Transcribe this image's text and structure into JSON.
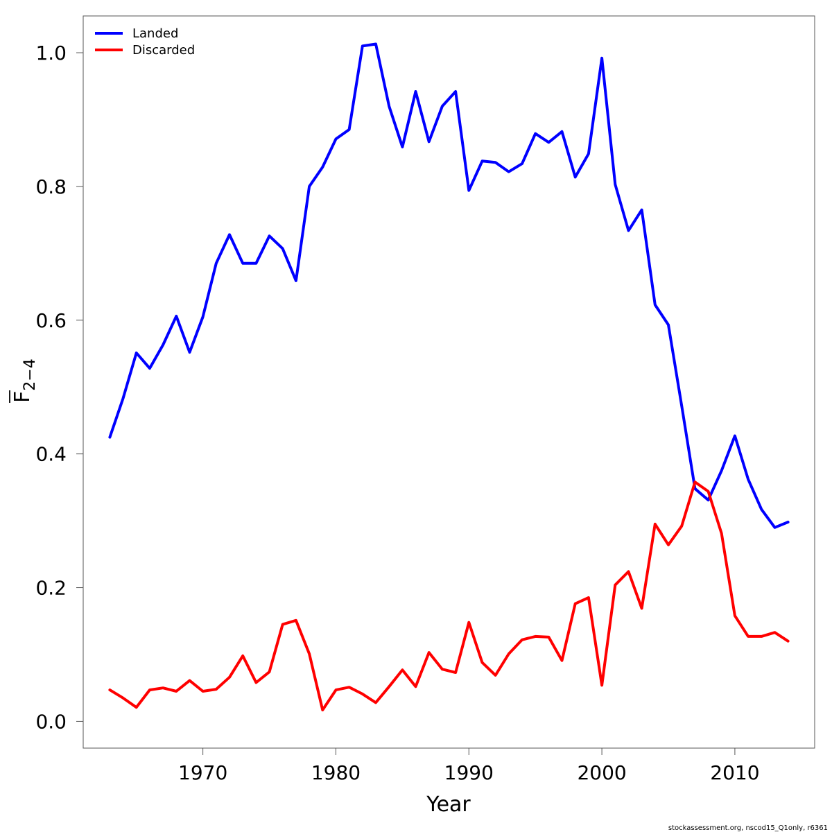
{
  "chart_data": {
    "type": "line",
    "xlabel": "Year",
    "ylabel": {
      "base": "F",
      "sub": "2−4"
    },
    "xlim": [
      1961,
      2016
    ],
    "ylim": [
      -0.04,
      1.055
    ],
    "xticks": [
      1970,
      1980,
      1990,
      2000,
      2010
    ],
    "yticks": [
      0.0,
      0.2,
      0.4,
      0.6,
      0.8,
      1.0
    ],
    "ytick_labels": [
      "0.0",
      "0.2",
      "0.4",
      "0.6",
      "0.8",
      "1.0"
    ],
    "grid": false,
    "legend_position": "top-left",
    "x": [
      1963,
      1964,
      1965,
      1966,
      1967,
      1968,
      1969,
      1970,
      1971,
      1972,
      1973,
      1974,
      1975,
      1976,
      1977,
      1978,
      1979,
      1980,
      1981,
      1982,
      1983,
      1984,
      1985,
      1986,
      1987,
      1988,
      1989,
      1990,
      1991,
      1992,
      1993,
      1994,
      1995,
      1996,
      1997,
      1998,
      1999,
      2000,
      2001,
      2002,
      2003,
      2004,
      2005,
      2006,
      2007,
      2008,
      2009,
      2010,
      2011,
      2012,
      2013,
      2014
    ],
    "series": [
      {
        "name": "Landed",
        "color": "#0000ff",
        "values": [
          0.425,
          0.483,
          0.551,
          0.528,
          0.563,
          0.606,
          0.552,
          0.605,
          0.685,
          0.728,
          0.685,
          0.685,
          0.726,
          0.707,
          0.659,
          0.8,
          0.829,
          0.871,
          0.885,
          1.01,
          1.013,
          0.92,
          0.859,
          0.942,
          0.867,
          0.92,
          0.942,
          0.794,
          0.838,
          0.836,
          0.822,
          0.834,
          0.879,
          0.866,
          0.882,
          0.814,
          0.849,
          0.992,
          0.803,
          0.734,
          0.765,
          0.623,
          0.593,
          0.472,
          0.348,
          0.331,
          0.375,
          0.427,
          0.362,
          0.317,
          0.29,
          0.298
        ]
      },
      {
        "name": "Discarded",
        "color": "#ff0000",
        "values": [
          0.047,
          0.035,
          0.021,
          0.047,
          0.05,
          0.045,
          0.061,
          0.045,
          0.048,
          0.066,
          0.098,
          0.058,
          0.074,
          0.145,
          0.151,
          0.101,
          0.017,
          0.047,
          0.051,
          0.041,
          0.028,
          0.052,
          0.077,
          0.052,
          0.103,
          0.078,
          0.073,
          0.148,
          0.088,
          0.069,
          0.101,
          0.122,
          0.127,
          0.126,
          0.091,
          0.176,
          0.185,
          0.054,
          0.204,
          0.224,
          0.169,
          0.295,
          0.264,
          0.292,
          0.358,
          0.344,
          0.281,
          0.158,
          0.127,
          0.127,
          0.133,
          0.12
        ]
      }
    ]
  },
  "footer": "stockassessment.org, nscod15_Q1only, r6361"
}
